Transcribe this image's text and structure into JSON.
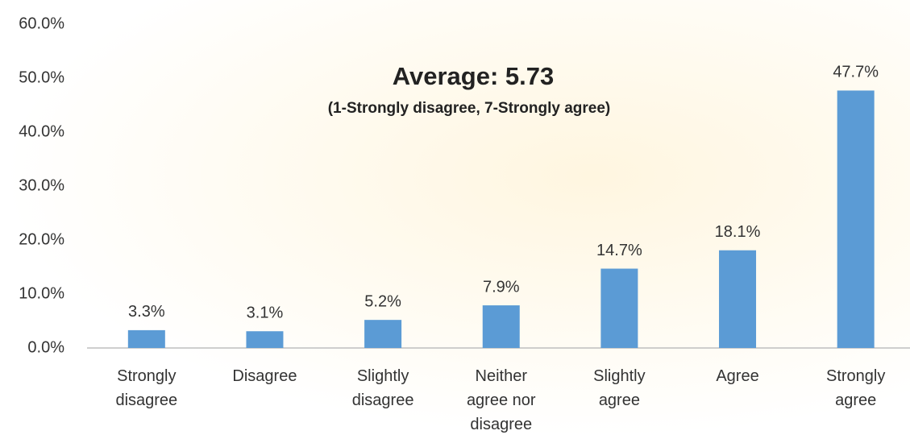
{
  "chart_data": {
    "type": "bar",
    "title": "Average: 5.73",
    "subtitle": "(1-Strongly disagree, 7-Strongly agree)",
    "categories": [
      "Strongly disagree",
      "Disagree",
      "Slightly disagree",
      "Neither agree nor disagree",
      "Slightly agree",
      "Agree",
      "Strongly agree"
    ],
    "values": [
      3.3,
      3.1,
      5.2,
      7.9,
      14.7,
      18.1,
      47.7
    ],
    "value_labels": [
      "3.3%",
      "3.1%",
      "5.2%",
      "7.9%",
      "14.7%",
      "18.1%",
      "47.7%"
    ],
    "color": "#5b9bd5",
    "ylim": [
      0,
      60
    ],
    "yticks": [
      {
        "value": 0,
        "label": "0.0%"
      },
      {
        "value": 10,
        "label": "10.0%"
      },
      {
        "value": 20,
        "label": "20.0%"
      },
      {
        "value": 30,
        "label": "30.0%"
      },
      {
        "value": 40,
        "label": "40.0%"
      },
      {
        "value": 50,
        "label": "50.0%"
      },
      {
        "value": 60,
        "label": "60.0%"
      }
    ],
    "grid": false
  }
}
